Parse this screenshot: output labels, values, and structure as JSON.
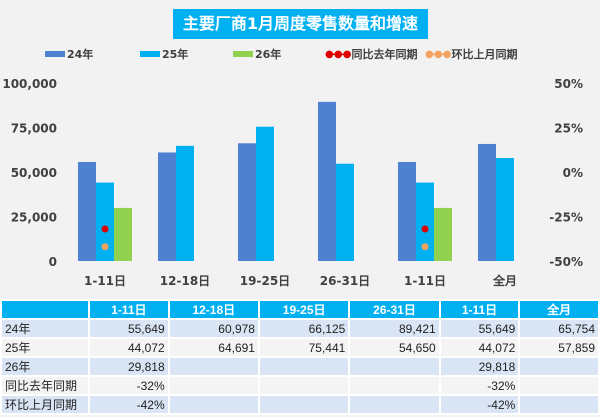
{
  "chart_data": {
    "type": "bar",
    "title": "主要厂商1月周度零售数量和增速",
    "categories": [
      "1-11日",
      "12-18日",
      "19-25日",
      "26-31日",
      "1-11日",
      "全月"
    ],
    "series": [
      {
        "name": "24年",
        "type": "bar",
        "color": "#4F81D0",
        "values": [
          55649,
          60978,
          66125,
          89421,
          55649,
          65754
        ]
      },
      {
        "name": "25年",
        "type": "bar",
        "color": "#00B0F0",
        "values": [
          44072,
          64691,
          75441,
          54650,
          44072,
          57859
        ]
      },
      {
        "name": "26年",
        "type": "bar",
        "color": "#92D050",
        "values": [
          29818,
          null,
          null,
          null,
          29818,
          null
        ]
      },
      {
        "name": "同比去年同期",
        "type": "line",
        "axis": "right",
        "color": "#E00000",
        "values": [
          -0.32,
          null,
          null,
          null,
          -0.32,
          null
        ]
      },
      {
        "name": "环比上月同期",
        "type": "line",
        "axis": "right",
        "color": "#F4A460",
        "values": [
          -0.42,
          null,
          null,
          null,
          -0.42,
          null
        ]
      }
    ],
    "ylim": [
      0,
      100000
    ],
    "yticks": [
      "0",
      "25,000",
      "50,000",
      "75,000",
      "100,000"
    ],
    "y2lim": [
      -0.5,
      0.5
    ],
    "y2ticks": [
      "-50%",
      "-25%",
      "0%",
      "25%",
      "50%"
    ],
    "legend": "top",
    "grid": false
  },
  "table": {
    "header": [
      "",
      "1-11日",
      "12-18日",
      "19-25日",
      "26-31日",
      "1-11日",
      "全月"
    ],
    "rows": [
      [
        "24年",
        "55,649",
        "60,978",
        "66,125",
        "89,421",
        "55,649",
        "65,754"
      ],
      [
        "25年",
        "44,072",
        "64,691",
        "75,441",
        "54,650",
        "44,072",
        "57,859"
      ],
      [
        "26年",
        "29,818",
        "",
        "",
        "",
        "29,818",
        ""
      ],
      [
        "同比去年同期",
        "-32%",
        "",
        "",
        "",
        "-32%",
        ""
      ],
      [
        "环比上月同期",
        "-42%",
        "",
        "",
        "",
        "-42%",
        ""
      ]
    ]
  }
}
